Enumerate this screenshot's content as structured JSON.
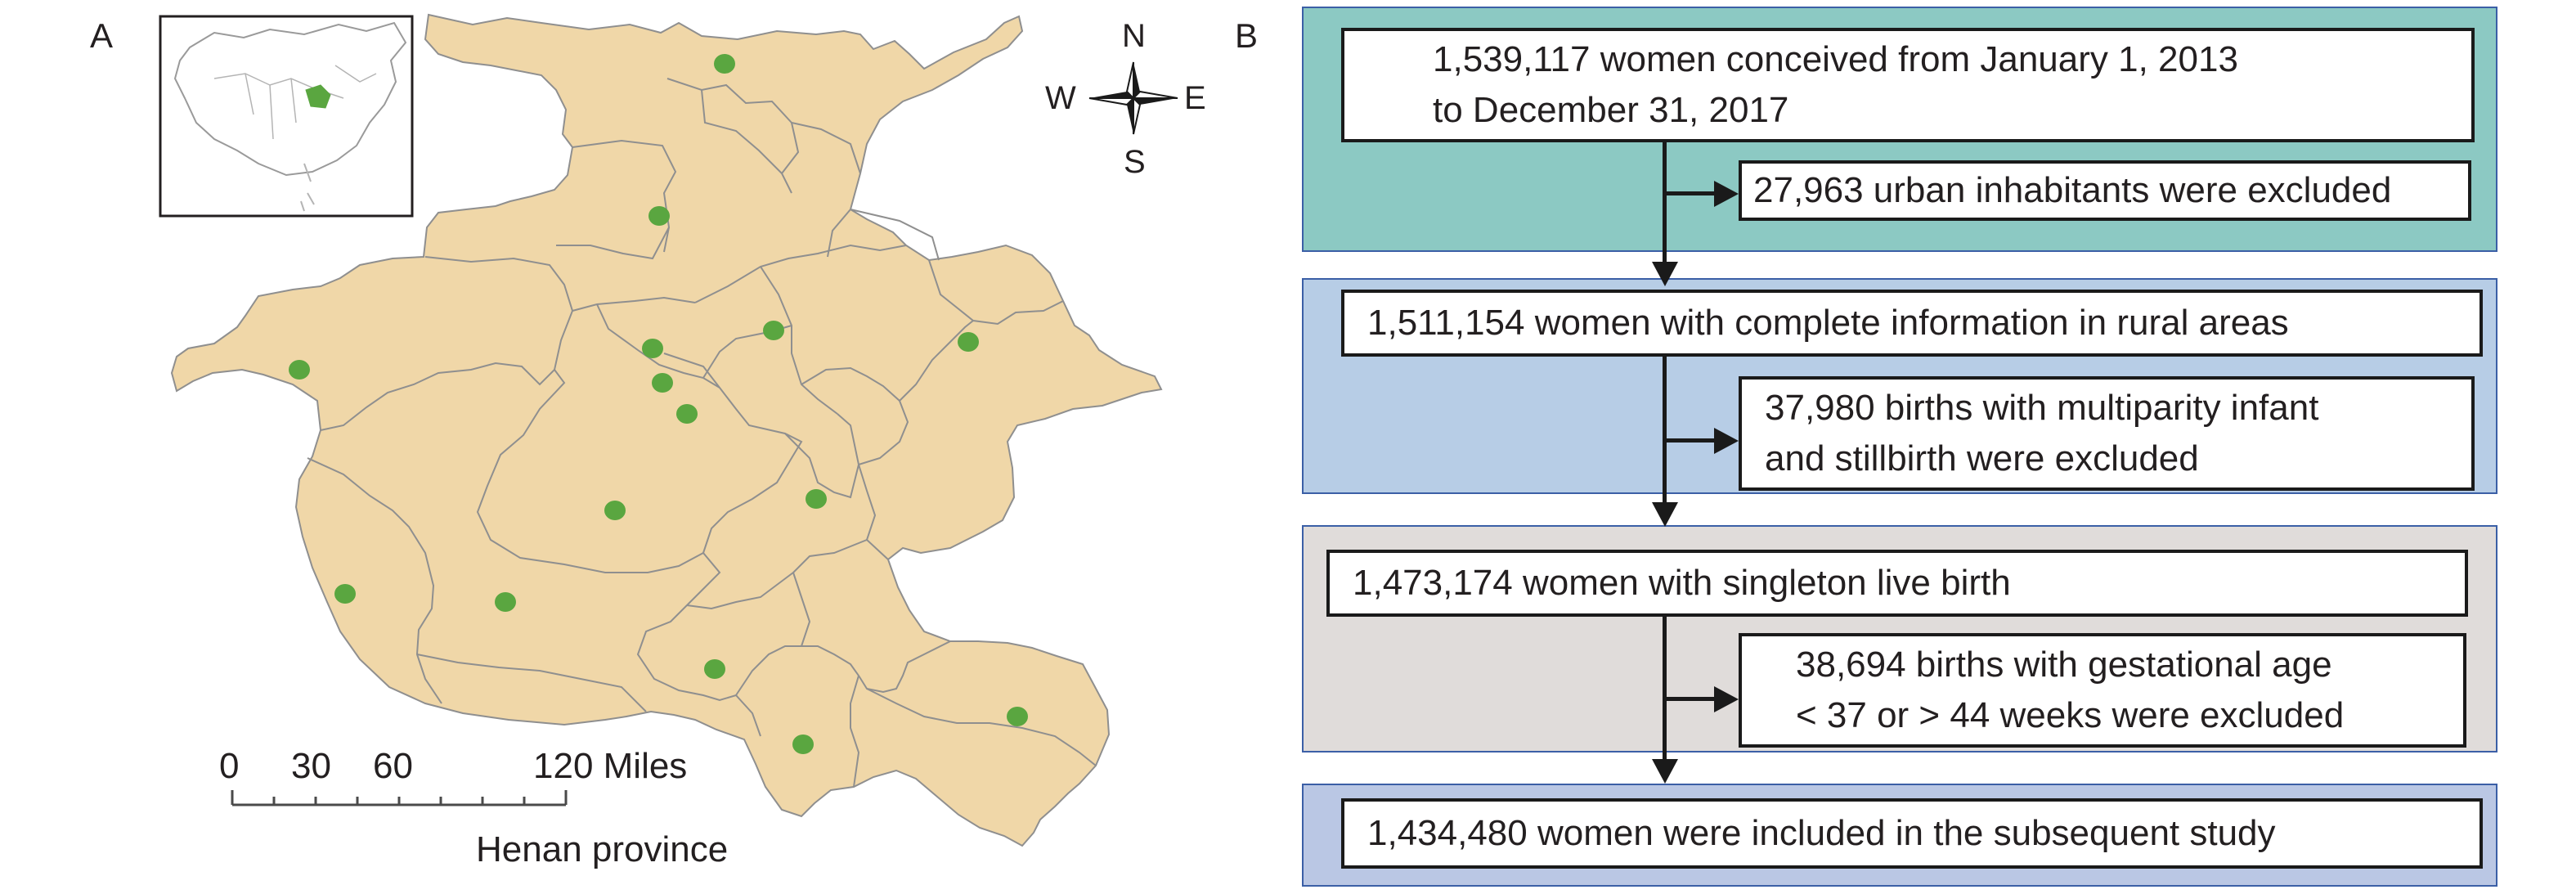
{
  "panels": {
    "a_label": "A",
    "b_label": "B"
  },
  "map": {
    "colors": {
      "province_fill": "#f0d7a8",
      "border": "#8f8f8f",
      "site_dot": "#5aa640",
      "inset_highlight": "#5aa640"
    },
    "compass": {
      "north": "N",
      "south": "S",
      "east": "E",
      "west": "W"
    },
    "scale_bar": {
      "tick_0": "0",
      "tick_30": "30",
      "tick_60": "60",
      "tick_120": "120 Miles"
    },
    "caption": "Henan province",
    "study_sites_count": 14
  },
  "flowchart": {
    "colors": {
      "band_1": "#8cc9c3",
      "band_2": "#b7cde6",
      "band_3": "#e0dcda",
      "band_4": "#bac7e4",
      "band_border": "#3b5fa6"
    },
    "step_1": {
      "line_1": "1,539,117 women conceived from January 1, 2013",
      "line_2": "to December 31, 2017"
    },
    "exclusion_1": {
      "line_1": "27,963 urban inhabitants were excluded"
    },
    "step_2": {
      "line_1": "1,511,154 women with complete information in rural areas"
    },
    "exclusion_2": {
      "line_1": "37,980 births with multiparity infant",
      "line_2": "and stillbirth were excluded"
    },
    "step_3": {
      "line_1": "1,473,174 women with singleton live birth"
    },
    "exclusion_3": {
      "line_1": "38,694 births with gestational age",
      "line_2": "< 37 or > 44 weeks were excluded"
    },
    "step_4": {
      "line_1": "1,434,480 women were included in the subsequent study"
    }
  }
}
